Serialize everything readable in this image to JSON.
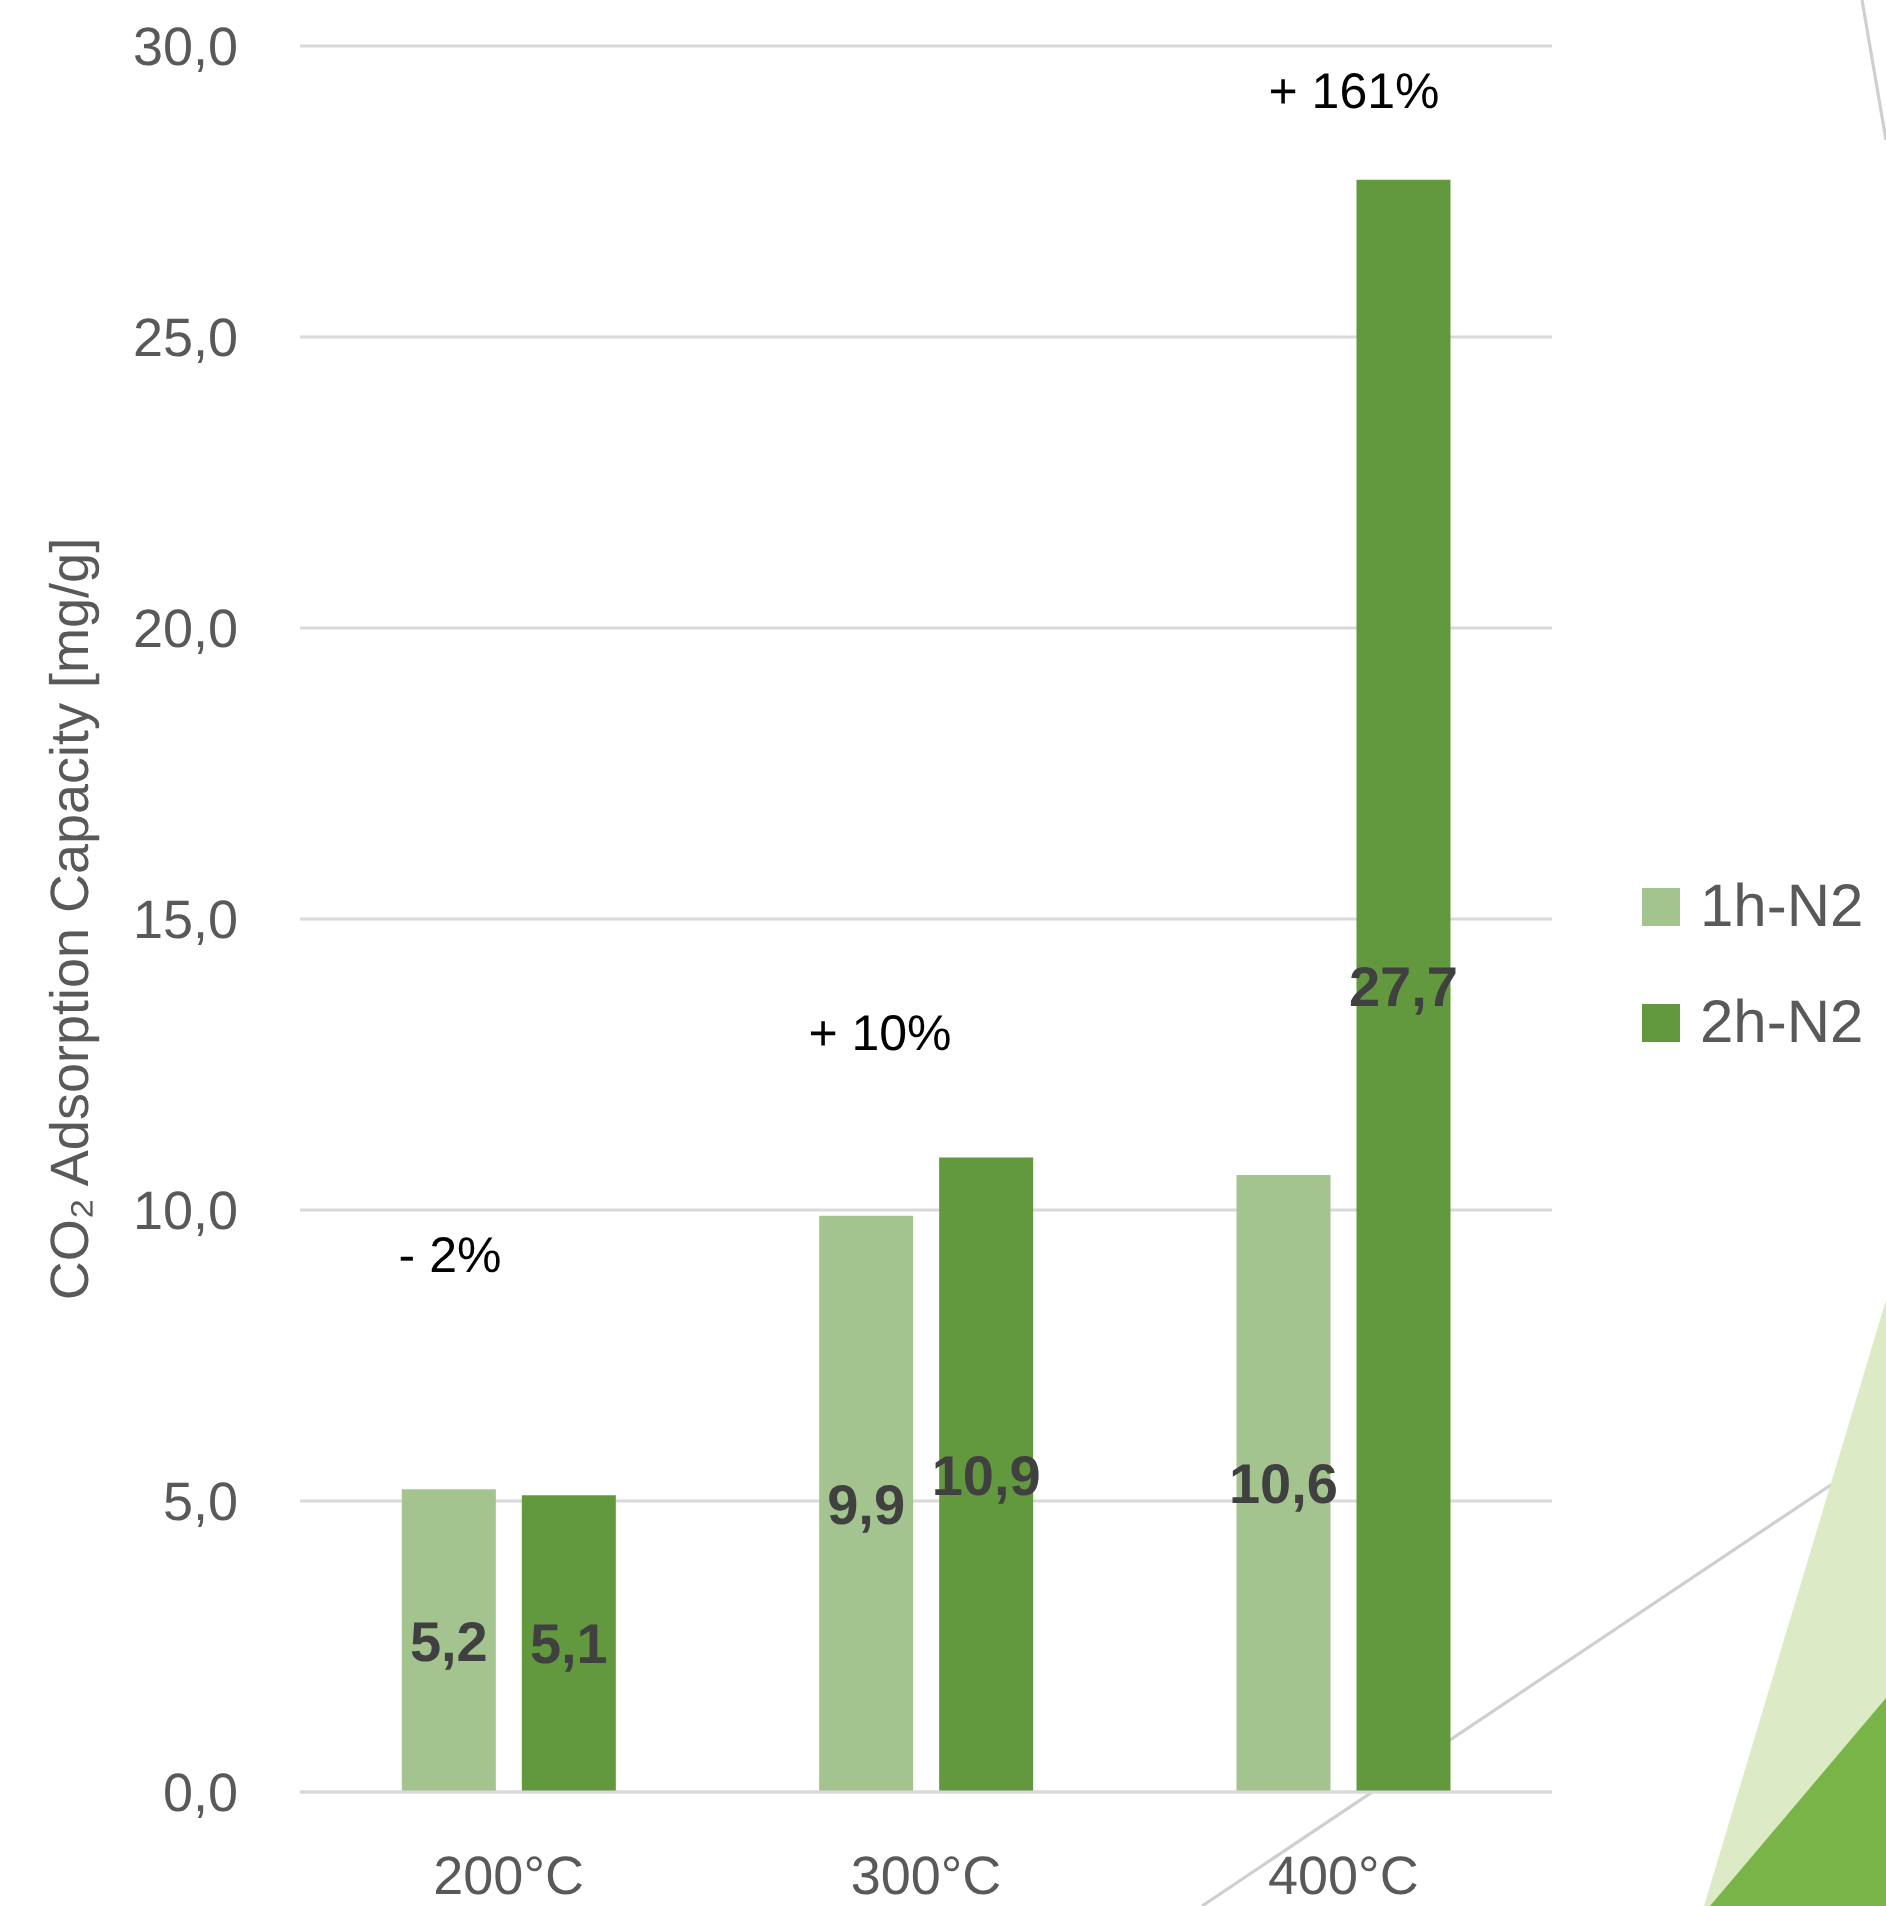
{
  "chart_data": {
    "type": "bar",
    "categories": [
      "200°C",
      "300°C",
      "400°C"
    ],
    "series": [
      {
        "name": "1h-N2",
        "color": "#a3c48f",
        "values": [
          5.2,
          9.9,
          10.6
        ],
        "value_labels": [
          "5,2",
          "9,9",
          "10,6"
        ]
      },
      {
        "name": "2h-N2",
        "color": "#62993e",
        "values": [
          5.1,
          10.9,
          27.7
        ],
        "value_labels": [
          "5,1",
          "10,9",
          "27,7"
        ]
      }
    ],
    "ylabel": "CO₂ Adsorption Capacity [mg/g]",
    "ylim": [
      0,
      30
    ],
    "yticks": [
      {
        "value": 0,
        "label": "0,0"
      },
      {
        "value": 5,
        "label": "5,0"
      },
      {
        "value": 10,
        "label": "10,0"
      },
      {
        "value": 15,
        "label": "15,0"
      },
      {
        "value": 20,
        "label": "20,0"
      },
      {
        "value": 25,
        "label": "25,0"
      },
      {
        "value": 30,
        "label": "30,0"
      }
    ],
    "grid": "y",
    "legend": "right",
    "annotations": [
      "- 2%",
      "+ 10%",
      "+ 161%"
    ]
  }
}
